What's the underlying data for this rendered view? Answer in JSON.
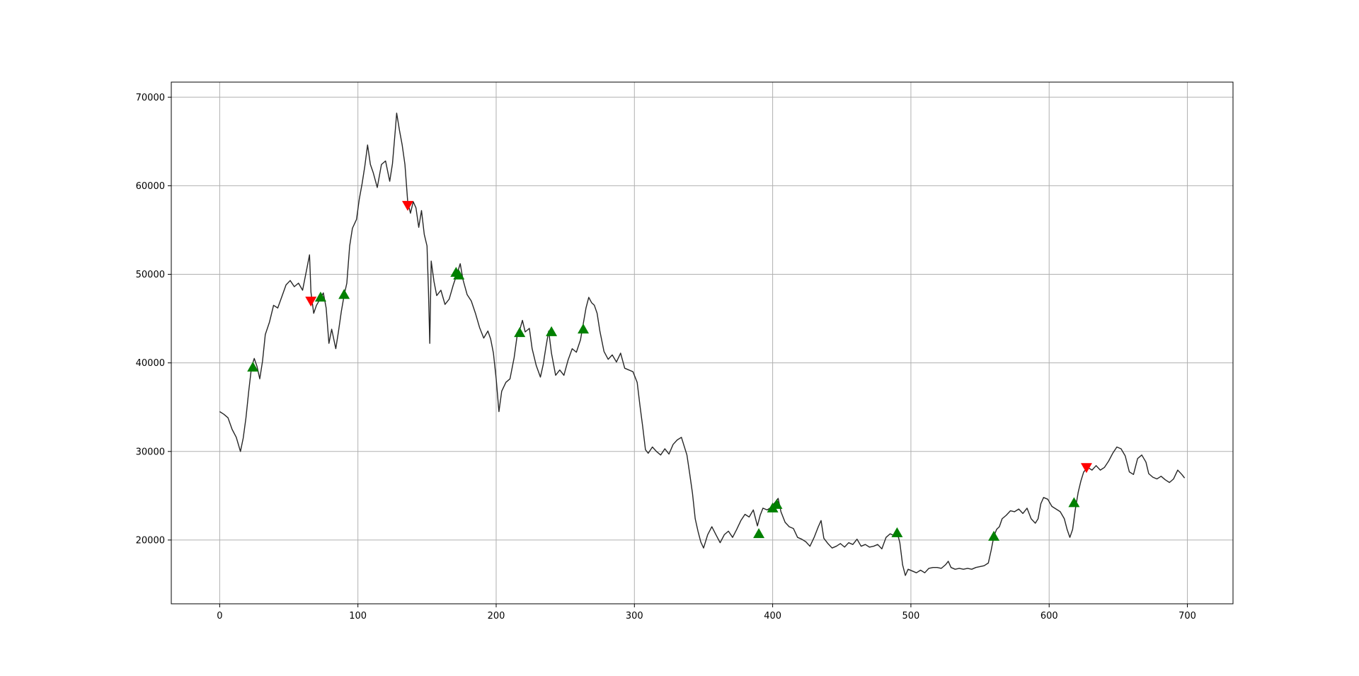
{
  "chart_data": {
    "type": "line",
    "title": "",
    "xlabel": "",
    "ylabel": "",
    "xlim": [
      -35,
      733
    ],
    "ylim": [
      12800,
      71700
    ],
    "grid": true,
    "x_ticks": [
      0,
      100,
      200,
      300,
      400,
      500,
      600,
      700
    ],
    "y_ticks": [
      20000,
      30000,
      40000,
      50000,
      60000,
      70000
    ],
    "x_tick_labels": [
      "0",
      "100",
      "200",
      "300",
      "400",
      "500",
      "600",
      "700"
    ],
    "y_tick_labels": [
      "20000",
      "30000",
      "40000",
      "50000",
      "60000",
      "70000"
    ],
    "colors": {
      "line": "#262626",
      "buy": "#008000",
      "sell": "#ff0000",
      "grid": "#b0b0b0"
    },
    "series": [
      {
        "values": [
          [
            0,
            34500
          ],
          [
            3,
            34200
          ],
          [
            6,
            33800
          ],
          [
            9,
            32500
          ],
          [
            12,
            31600
          ],
          [
            15,
            30000
          ],
          [
            17,
            31500
          ],
          [
            19,
            33800
          ],
          [
            21,
            36800
          ],
          [
            23,
            39500
          ],
          [
            25,
            40500
          ],
          [
            27,
            39600
          ],
          [
            29,
            38200
          ],
          [
            31,
            40200
          ],
          [
            33,
            43200
          ],
          [
            36,
            44600
          ],
          [
            39,
            46500
          ],
          [
            42,
            46200
          ],
          [
            45,
            47500
          ],
          [
            48,
            48800
          ],
          [
            51,
            49300
          ],
          [
            54,
            48600
          ],
          [
            57,
            49000
          ],
          [
            60,
            48200
          ],
          [
            63,
            50600
          ],
          [
            65,
            52200
          ],
          [
            66,
            48000
          ],
          [
            68,
            45600
          ],
          [
            70,
            46500
          ],
          [
            73,
            47300
          ],
          [
            75,
            47900
          ],
          [
            77,
            46200
          ],
          [
            79,
            42200
          ],
          [
            81,
            43800
          ],
          [
            84,
            41600
          ],
          [
            86,
            43600
          ],
          [
            88,
            45800
          ],
          [
            90,
            47600
          ],
          [
            92,
            49000
          ],
          [
            94,
            53200
          ],
          [
            96,
            55200
          ],
          [
            99,
            56200
          ],
          [
            101,
            58500
          ],
          [
            103,
            60200
          ],
          [
            105,
            62200
          ],
          [
            107,
            64600
          ],
          [
            109,
            62400
          ],
          [
            111,
            61500
          ],
          [
            114,
            59800
          ],
          [
            117,
            62400
          ],
          [
            120,
            62800
          ],
          [
            123,
            60500
          ],
          [
            125,
            62500
          ],
          [
            127,
            66200
          ],
          [
            128,
            68200
          ],
          [
            130,
            66300
          ],
          [
            132,
            64600
          ],
          [
            134,
            62400
          ],
          [
            136,
            58200
          ],
          [
            138,
            56900
          ],
          [
            140,
            58200
          ],
          [
            142,
            57500
          ],
          [
            144,
            55300
          ],
          [
            146,
            57200
          ],
          [
            148,
            54500
          ],
          [
            150,
            53200
          ],
          [
            151,
            48200
          ],
          [
            152,
            42200
          ],
          [
            153,
            51500
          ],
          [
            155,
            49200
          ],
          [
            157,
            47600
          ],
          [
            160,
            48200
          ],
          [
            163,
            46600
          ],
          [
            166,
            47200
          ],
          [
            169,
            48800
          ],
          [
            172,
            50200
          ],
          [
            174,
            51200
          ],
          [
            176,
            49400
          ],
          [
            179,
            47700
          ],
          [
            182,
            47000
          ],
          [
            185,
            45600
          ],
          [
            188,
            44000
          ],
          [
            191,
            42800
          ],
          [
            194,
            43600
          ],
          [
            196,
            42700
          ],
          [
            198,
            41100
          ],
          [
            200,
            38200
          ],
          [
            202,
            34500
          ],
          [
            204,
            36800
          ],
          [
            207,
            37800
          ],
          [
            210,
            38200
          ],
          [
            213,
            40600
          ],
          [
            215,
            42900
          ],
          [
            217,
            43700
          ],
          [
            219,
            44800
          ],
          [
            221,
            43500
          ],
          [
            224,
            43900
          ],
          [
            226,
            41600
          ],
          [
            229,
            39700
          ],
          [
            232,
            38400
          ],
          [
            234,
            39800
          ],
          [
            236,
            41800
          ],
          [
            238,
            43600
          ],
          [
            240,
            41100
          ],
          [
            243,
            38600
          ],
          [
            246,
            39200
          ],
          [
            249,
            38600
          ],
          [
            252,
            40300
          ],
          [
            255,
            41600
          ],
          [
            258,
            41200
          ],
          [
            261,
            42600
          ],
          [
            263,
            44400
          ],
          [
            265,
            46200
          ],
          [
            267,
            47400
          ],
          [
            269,
            46800
          ],
          [
            271,
            46500
          ],
          [
            273,
            45600
          ],
          [
            275,
            43600
          ],
          [
            278,
            41300
          ],
          [
            281,
            40400
          ],
          [
            284,
            40900
          ],
          [
            287,
            40100
          ],
          [
            290,
            41100
          ],
          [
            293,
            39400
          ],
          [
            296,
            39200
          ],
          [
            299,
            39000
          ],
          [
            302,
            37800
          ],
          [
            304,
            35200
          ],
          [
            306,
            32800
          ],
          [
            308,
            30200
          ],
          [
            310,
            29800
          ],
          [
            313,
            30500
          ],
          [
            316,
            30000
          ],
          [
            319,
            29600
          ],
          [
            322,
            30300
          ],
          [
            325,
            29700
          ],
          [
            328,
            30800
          ],
          [
            331,
            31300
          ],
          [
            334,
            31600
          ],
          [
            336,
            30600
          ],
          [
            338,
            29600
          ],
          [
            340,
            27500
          ],
          [
            342,
            25300
          ],
          [
            344,
            22400
          ],
          [
            346,
            21000
          ],
          [
            348,
            19800
          ],
          [
            350,
            19100
          ],
          [
            353,
            20600
          ],
          [
            356,
            21500
          ],
          [
            359,
            20600
          ],
          [
            362,
            19700
          ],
          [
            365,
            20600
          ],
          [
            368,
            21000
          ],
          [
            371,
            20300
          ],
          [
            374,
            21200
          ],
          [
            377,
            22200
          ],
          [
            380,
            22900
          ],
          [
            383,
            22600
          ],
          [
            386,
            23400
          ],
          [
            389,
            21600
          ],
          [
            391,
            22800
          ],
          [
            393,
            23600
          ],
          [
            396,
            23400
          ],
          [
            399,
            23700
          ],
          [
            402,
            24300
          ],
          [
            404,
            24700
          ],
          [
            406,
            23200
          ],
          [
            409,
            22000
          ],
          [
            412,
            21500
          ],
          [
            415,
            21300
          ],
          [
            418,
            20300
          ],
          [
            421,
            20100
          ],
          [
            424,
            19800
          ],
          [
            427,
            19300
          ],
          [
            430,
            20300
          ],
          [
            433,
            21500
          ],
          [
            435,
            22200
          ],
          [
            437,
            20200
          ],
          [
            440,
            19600
          ],
          [
            443,
            19100
          ],
          [
            446,
            19300
          ],
          [
            449,
            19600
          ],
          [
            452,
            19200
          ],
          [
            455,
            19700
          ],
          [
            458,
            19500
          ],
          [
            461,
            20100
          ],
          [
            464,
            19300
          ],
          [
            467,
            19500
          ],
          [
            470,
            19200
          ],
          [
            473,
            19300
          ],
          [
            476,
            19500
          ],
          [
            479,
            19000
          ],
          [
            482,
            20300
          ],
          [
            485,
            20700
          ],
          [
            488,
            20500
          ],
          [
            490,
            20900
          ],
          [
            492,
            19700
          ],
          [
            494,
            17200
          ],
          [
            496,
            16000
          ],
          [
            498,
            16700
          ],
          [
            501,
            16500
          ],
          [
            504,
            16300
          ],
          [
            507,
            16600
          ],
          [
            510,
            16300
          ],
          [
            513,
            16800
          ],
          [
            516,
            16900
          ],
          [
            519,
            16900
          ],
          [
            522,
            16800
          ],
          [
            525,
            17200
          ],
          [
            527,
            17600
          ],
          [
            529,
            16900
          ],
          [
            532,
            16700
          ],
          [
            535,
            16800
          ],
          [
            538,
            16700
          ],
          [
            541,
            16800
          ],
          [
            544,
            16700
          ],
          [
            547,
            16900
          ],
          [
            550,
            17000
          ],
          [
            553,
            17100
          ],
          [
            556,
            17400
          ],
          [
            558,
            18800
          ],
          [
            560,
            20400
          ],
          [
            562,
            21200
          ],
          [
            564,
            21500
          ],
          [
            566,
            22400
          ],
          [
            569,
            22800
          ],
          [
            572,
            23300
          ],
          [
            575,
            23200
          ],
          [
            578,
            23500
          ],
          [
            581,
            23000
          ],
          [
            584,
            23600
          ],
          [
            587,
            22400
          ],
          [
            590,
            21900
          ],
          [
            592,
            22400
          ],
          [
            594,
            24100
          ],
          [
            596,
            24800
          ],
          [
            599,
            24600
          ],
          [
            602,
            23800
          ],
          [
            605,
            23500
          ],
          [
            608,
            23200
          ],
          [
            611,
            22400
          ],
          [
            613,
            21200
          ],
          [
            615,
            20300
          ],
          [
            617,
            21200
          ],
          [
            619,
            23500
          ],
          [
            621,
            25400
          ],
          [
            623,
            26700
          ],
          [
            625,
            27700
          ],
          [
            628,
            28200
          ],
          [
            631,
            27900
          ],
          [
            634,
            28400
          ],
          [
            637,
            27900
          ],
          [
            640,
            28200
          ],
          [
            643,
            28900
          ],
          [
            646,
            29800
          ],
          [
            649,
            30500
          ],
          [
            652,
            30300
          ],
          [
            655,
            29500
          ],
          [
            658,
            27700
          ],
          [
            661,
            27400
          ],
          [
            664,
            29200
          ],
          [
            667,
            29600
          ],
          [
            670,
            28800
          ],
          [
            672,
            27500
          ],
          [
            675,
            27100
          ],
          [
            678,
            26900
          ],
          [
            681,
            27200
          ],
          [
            684,
            26800
          ],
          [
            687,
            26500
          ],
          [
            690,
            26900
          ],
          [
            693,
            27900
          ],
          [
            696,
            27400
          ],
          [
            698,
            27000
          ]
        ]
      }
    ],
    "buy_signals": [
      [
        24,
        39500
      ],
      [
        73,
        47400
      ],
      [
        90,
        47700
      ],
      [
        171,
        50200
      ],
      [
        173,
        49900
      ],
      [
        217,
        43400
      ],
      [
        240,
        43500
      ],
      [
        263,
        43800
      ],
      [
        390,
        20700
      ],
      [
        400,
        23600
      ],
      [
        403,
        24000
      ],
      [
        490,
        20800
      ],
      [
        560,
        20400
      ],
      [
        618,
        24200
      ]
    ],
    "sell_signals": [
      [
        66,
        47000
      ],
      [
        136,
        57800
      ],
      [
        627,
        28200
      ]
    ]
  }
}
